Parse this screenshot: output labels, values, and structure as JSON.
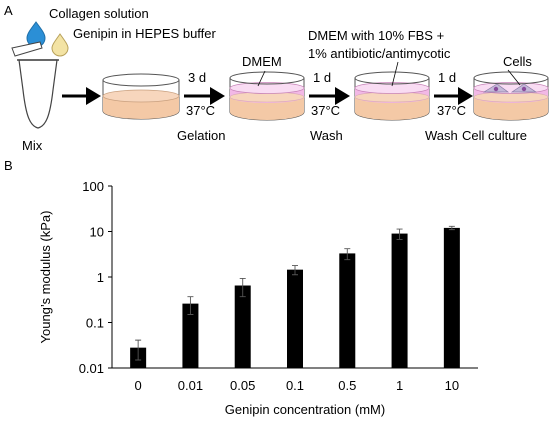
{
  "panel_a": {
    "label": "A",
    "reagents": [
      {
        "text": "Collagen solution",
        "color": "#2b8fd6"
      },
      {
        "text": "Genipin in HEPES buffer",
        "color": "#f3e3a4"
      }
    ],
    "mix_label": "Mix",
    "steps": [
      {
        "top_note": "3 d",
        "bottom_note": "37°C"
      },
      {
        "top_note": "1 d",
        "bottom_note": "37°C"
      },
      {
        "top_note": "1 d",
        "bottom_note": "37°C"
      }
    ],
    "dish_labels": {
      "dmem": "DMEM",
      "dmem_fbs_line1": "DMEM with 10% FBS +",
      "dmem_fbs_line2": "1% antibiotic/antimycotic",
      "cells": "Cells"
    },
    "stage_labels": [
      "Gelation",
      "Wash",
      "Wash",
      "Cell culture"
    ],
    "colors": {
      "gel": "#f4c9a6",
      "medium": "#f2b8e6",
      "medium_light": "#f9dcf3"
    }
  },
  "panel_b": {
    "label": "B"
  },
  "chart_data": {
    "type": "bar",
    "title": "",
    "xlabel": "Genipin concentration (mM)",
    "ylabel": "Young’s modulus (kPa)",
    "yscale": "log",
    "ylim": [
      0.01,
      100
    ],
    "y_tick_labels": [
      "0.01",
      "0.1",
      "1",
      "10",
      "100"
    ],
    "grid": false,
    "bar_color": "#000000",
    "categories": [
      "0",
      "0.01",
      "0.05",
      "0.1",
      "0.5",
      "1",
      "10"
    ],
    "values": [
      0.028,
      0.26,
      0.65,
      1.45,
      3.3,
      9.0,
      12.0
    ],
    "errors": [
      0.013,
      0.11,
      0.28,
      0.33,
      0.9,
      2.3,
      1.0
    ]
  }
}
